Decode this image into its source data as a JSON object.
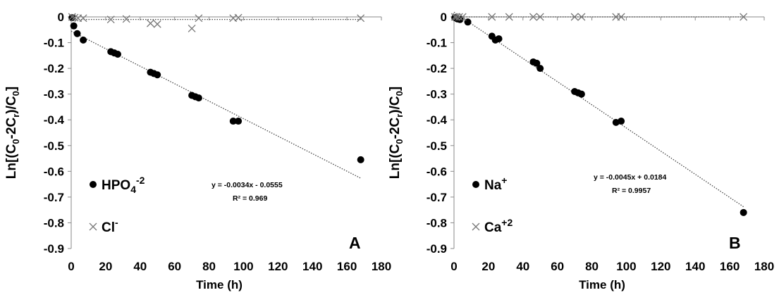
{
  "chart_data": [
    {
      "type": "scatter",
      "panel_label": "A",
      "xlabel": "Time (h)",
      "ylabel": {
        "base": "Ln[(C",
        "s1": "0",
        "mid": "-2C",
        "s2": "r",
        "mid2": ")/C",
        "s3": "0",
        "end": "]"
      },
      "xlim": [
        0,
        180
      ],
      "ylim": [
        -0.9,
        0
      ],
      "xticks": [
        0,
        20,
        40,
        60,
        80,
        100,
        120,
        140,
        160,
        180
      ],
      "yticks": [
        "0",
        "-0.1",
        "-0.2",
        "-0.3",
        "-0.4",
        "-0.5",
        "-0.6",
        "-0.7",
        "-0.8",
        "-0.9"
      ],
      "grid": false,
      "legend_position": "bottom-left",
      "series": [
        {
          "name": "HPO4-2",
          "legend": {
            "base": "HPO",
            "sub": "4",
            "sup": "-2"
          },
          "marker": "circle",
          "x": [
            0.5,
            1.5,
            3.5,
            7,
            23,
            25,
            27,
            46,
            48,
            50,
            70,
            72,
            74,
            94,
            97,
            168
          ],
          "y": [
            -0.003,
            -0.035,
            -0.065,
            -0.09,
            -0.135,
            -0.14,
            -0.145,
            -0.215,
            -0.22,
            -0.225,
            -0.305,
            -0.31,
            -0.315,
            -0.405,
            -0.405,
            -0.555
          ]
        },
        {
          "name": "Cl-",
          "legend": {
            "base": "Cl",
            "sub": "",
            "sup": "-"
          },
          "marker": "x",
          "x": [
            0.5,
            2,
            4,
            7,
            23,
            32,
            46,
            50,
            70,
            74,
            94,
            97,
            168
          ],
          "y": [
            0,
            -0.003,
            -0.005,
            -0.005,
            -0.01,
            -0.008,
            -0.025,
            -0.028,
            -0.045,
            -0.005,
            -0.005,
            -0.003,
            -0.005
          ]
        }
      ],
      "trendline": {
        "slope": -0.0034,
        "intercept": -0.0555,
        "x_range": [
          0,
          168
        ],
        "equation": "y = -0.0034x - 0.0555",
        "r2": "R² = 0.969"
      },
      "flat_line": {
        "y": -0.01,
        "x_range": [
          0,
          168
        ]
      }
    },
    {
      "type": "scatter",
      "panel_label": "B",
      "xlabel": "Time (h)",
      "ylabel": {
        "base": "Ln[(C",
        "s1": "0",
        "mid": "-2C",
        "s2": "r",
        "mid2": ")/C",
        "s3": "0",
        "end": "]"
      },
      "xlim": [
        0,
        180
      ],
      "ylim": [
        -0.9,
        0
      ],
      "xticks": [
        0,
        20,
        40,
        60,
        80,
        100,
        120,
        140,
        160,
        180
      ],
      "yticks": [
        "0",
        "-0.1",
        "-0.2",
        "-0.3",
        "-0.4",
        "-0.5",
        "-0.6",
        "-0.7",
        "-0.8",
        "-0.9"
      ],
      "grid": false,
      "legend_position": "bottom-left",
      "series": [
        {
          "name": "Na+",
          "legend": {
            "base": "Na",
            "sub": "",
            "sup": "+"
          },
          "marker": "circle",
          "x": [
            0.5,
            2,
            3.5,
            8,
            22,
            24,
            26,
            46,
            48,
            50,
            70,
            72,
            74,
            94,
            97,
            168
          ],
          "y": [
            -0.003,
            -0.008,
            -0.01,
            -0.02,
            -0.075,
            -0.09,
            -0.085,
            -0.175,
            -0.18,
            -0.2,
            -0.29,
            -0.295,
            -0.3,
            -0.41,
            -0.405,
            -0.76
          ]
        },
        {
          "name": "Ca+2",
          "legend": {
            "base": "Ca",
            "sub": "",
            "sup": "+2"
          },
          "marker": "x",
          "x": [
            0.5,
            1.5,
            3,
            5,
            22,
            32,
            46,
            50,
            70,
            74,
            94,
            97,
            168
          ],
          "y": [
            0,
            0,
            0,
            0,
            0,
            0,
            0,
            0,
            0,
            0,
            0,
            0,
            0
          ]
        }
      ],
      "trendline": {
        "slope": -0.0045,
        "intercept": 0.0184,
        "x_range": [
          0,
          168
        ],
        "equation": "y = -0.0045x + 0.0184",
        "r2": "R² = 0.9957"
      },
      "flat_line": {
        "y": 0,
        "x_range": [
          0,
          168
        ]
      }
    }
  ]
}
